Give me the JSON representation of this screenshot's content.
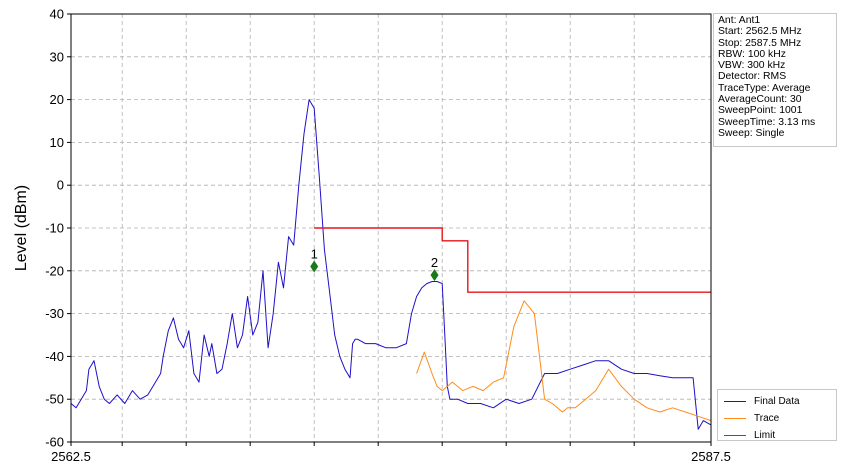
{
  "info_box": {
    "lines": [
      "Ant: Ant1",
      "Start: 2562.5 MHz",
      "Stop: 2587.5 MHz",
      "RBW: 100 kHz",
      "VBW: 300 kHz",
      "Detector: RMS",
      "TraceType: Average",
      "AverageCount: 30",
      "SweepPoint: 1001",
      "SweepTime: 3.13 ms",
      "Sweep: Single"
    ]
  },
  "legend": {
    "items": [
      {
        "label": "Final Data",
        "color": "#1f10c8"
      },
      {
        "label": "Trace",
        "color": "#ff8c1a"
      },
      {
        "label": "Limit",
        "color": "#e8141e"
      }
    ]
  },
  "chart_data": {
    "type": "line",
    "title": "",
    "xlabel": "",
    "ylabel": "Level (dBm)",
    "xlim": [
      2562.5,
      2587.5
    ],
    "ylim": [
      -60,
      40
    ],
    "x_ticks": [
      2562.5,
      2587.5
    ],
    "x_gridlines": [
      2564.5,
      2567.0,
      2569.5,
      2572.0,
      2574.5,
      2577.0,
      2579.5,
      2582.0,
      2584.5
    ],
    "y_ticks": [
      -60,
      -50,
      -40,
      -30,
      -20,
      -10,
      0,
      10,
      20,
      30,
      40
    ],
    "grid": true,
    "legend_position": "bottom-right",
    "series": [
      {
        "name": "Final Data",
        "color": "#1f10c8",
        "x": [
          2562.5,
          2562.7,
          2562.9,
          2563.1,
          2563.2,
          2563.4,
          2563.6,
          2563.8,
          2564.0,
          2564.3,
          2564.6,
          2564.9,
          2565.2,
          2565.5,
          2565.8,
          2566.0,
          2566.1,
          2566.3,
          2566.5,
          2566.7,
          2566.9,
          2567.1,
          2567.3,
          2567.5,
          2567.7,
          2567.9,
          2568.0,
          2568.2,
          2568.4,
          2568.6,
          2568.8,
          2569.0,
          2569.2,
          2569.4,
          2569.6,
          2569.8,
          2570.0,
          2570.2,
          2570.4,
          2570.6,
          2570.8,
          2571.0,
          2571.2,
          2571.4,
          2571.6,
          2571.8,
          2572.0,
          2572.2,
          2572.4,
          2572.6,
          2572.8,
          2573.0,
          2573.2,
          2573.4,
          2573.5,
          2573.6,
          2573.7,
          2574.0,
          2574.4,
          2574.8,
          2575.2,
          2575.6,
          2575.8,
          2576.0,
          2576.2,
          2576.4,
          2576.6,
          2576.8,
          2577.0,
          2577.1,
          2577.2,
          2577.3,
          2577.6,
          2578.0,
          2578.5,
          2579.0,
          2579.5,
          2580.0,
          2580.5,
          2581.0,
          2581.5,
          2582.0,
          2582.5,
          2583.0,
          2583.5,
          2584.0,
          2584.5,
          2585.0,
          2585.5,
          2586.0,
          2586.4,
          2586.5,
          2586.6,
          2586.8,
          2587.0,
          2587.2,
          2587.5
        ],
        "y": [
          -51,
          -52,
          -50,
          -48,
          -43,
          -41,
          -47,
          -50,
          -51,
          -49,
          -51,
          -48,
          -50,
          -49,
          -46,
          -44,
          -40,
          -34,
          -31,
          -36,
          -38,
          -34,
          -44,
          -46,
          -35,
          -40,
          -37,
          -44,
          -43,
          -37,
          -30,
          -38,
          -35,
          -26,
          -35,
          -32,
          -20,
          -38,
          -30,
          -18,
          -24,
          -12,
          -14,
          0,
          12,
          20,
          18,
          2,
          -15,
          -25,
          -35,
          -40,
          -43,
          -45,
          -37,
          -36,
          -36,
          -37,
          -37,
          -38,
          -38,
          -37,
          -30,
          -26,
          -24,
          -23,
          -22.5,
          -22.5,
          -23,
          -35,
          -47,
          -50,
          -50,
          -51,
          -51,
          -52,
          -50,
          -51,
          -50,
          -44,
          -44,
          -43,
          -42,
          -41,
          -41,
          -43,
          -44,
          -44,
          -44.5,
          -45,
          -45,
          -45,
          -45,
          -45,
          -45,
          -45,
          -45
        ],
        "overrides": {
          "last_points_y": [
            -57,
            -55,
            -56
          ]
        }
      },
      {
        "name": "Trace",
        "color": "#ff8c1a",
        "x": [
          2576.0,
          2576.3,
          2576.6,
          2576.8,
          2577.0,
          2577.2,
          2577.4,
          2577.8,
          2578.2,
          2578.6,
          2579.0,
          2579.4,
          2579.8,
          2580.2,
          2580.6,
          2581.0,
          2581.3,
          2581.5,
          2581.7,
          2581.9,
          2582.2,
          2582.6,
          2583.0,
          2583.5,
          2584.0,
          2584.5,
          2585.0,
          2585.5,
          2586.0,
          2586.5,
          2587.0,
          2587.5
        ],
        "y": [
          -44,
          -39,
          -44,
          -47,
          -48,
          -47,
          -46,
          -48,
          -47,
          -48,
          -46,
          -45,
          -33,
          -27,
          -30,
          -50,
          -51,
          -52,
          -53,
          -52,
          -52,
          -50,
          -48,
          -43,
          -47,
          -50,
          -52,
          -53,
          -52,
          -53,
          -54,
          -55
        ]
      },
      {
        "name": "Limit",
        "color": "#e8141e",
        "x": [
          2572.0,
          2577.0,
          2577.0,
          2578.0,
          2578.0,
          2587.5
        ],
        "y": [
          -10,
          -10,
          -13,
          -13,
          -25,
          -25
        ]
      }
    ],
    "markers": [
      {
        "label": "1",
        "x": 2572.0,
        "y": -19,
        "color": "#1a7a1a"
      },
      {
        "label": "2",
        "x": 2576.7,
        "y": -21,
        "color": "#1a7a1a"
      }
    ]
  }
}
